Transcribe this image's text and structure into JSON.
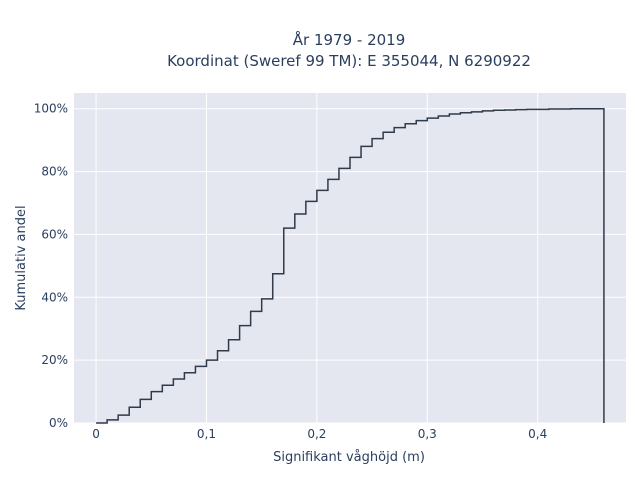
{
  "chart_data": {
    "type": "line",
    "subtype": "step-cdf",
    "title_line1": "År 1979 - 2019",
    "title_line2": "Koordinat (Sweref 99 TM): E 355044, N 6290922",
    "xlabel": "Signifikant våghöjd (m)",
    "ylabel": "Kumulativ andel",
    "xlim": [
      -0.02,
      0.48
    ],
    "ylim": [
      0,
      1.05
    ],
    "x_ticks": [
      {
        "value": 0,
        "label": "0"
      },
      {
        "value": 0.1,
        "label": "0,1"
      },
      {
        "value": 0.2,
        "label": "0,2"
      },
      {
        "value": 0.3,
        "label": "0,3"
      },
      {
        "value": 0.4,
        "label": "0,4"
      }
    ],
    "y_ticks": [
      {
        "value": 0,
        "label": "0%"
      },
      {
        "value": 0.2,
        "label": "20%"
      },
      {
        "value": 0.4,
        "label": "40%"
      },
      {
        "value": 0.6,
        "label": "60%"
      },
      {
        "value": 0.8,
        "label": "80%"
      },
      {
        "value": 1.0,
        "label": "100%"
      }
    ],
    "grid": true,
    "colors": {
      "plot_bg": "#e5e7f0",
      "grid": "#ffffff",
      "line": "#2f3a4a"
    },
    "series": [
      {
        "x": [
          0,
          0.01,
          0.02,
          0.03,
          0.04,
          0.05,
          0.06,
          0.07,
          0.08,
          0.09,
          0.1,
          0.11,
          0.12,
          0.13,
          0.14,
          0.15,
          0.16,
          0.17,
          0.18,
          0.19,
          0.2,
          0.21,
          0.22,
          0.23,
          0.24,
          0.25,
          0.26,
          0.27,
          0.28,
          0.29,
          0.3,
          0.31,
          0.32,
          0.33,
          0.34,
          0.35,
          0.36,
          0.37,
          0.38,
          0.39,
          0.4,
          0.41,
          0.42,
          0.43,
          0.44,
          0.45,
          0.46,
          0.46
        ],
        "y": [
          0,
          0.01,
          0.025,
          0.05,
          0.075,
          0.1,
          0.12,
          0.14,
          0.16,
          0.18,
          0.2,
          0.23,
          0.265,
          0.31,
          0.355,
          0.395,
          0.475,
          0.62,
          0.665,
          0.705,
          0.74,
          0.775,
          0.81,
          0.845,
          0.88,
          0.905,
          0.925,
          0.94,
          0.952,
          0.962,
          0.97,
          0.977,
          0.983,
          0.987,
          0.99,
          0.993,
          0.995,
          0.996,
          0.997,
          0.998,
          0.998,
          0.999,
          0.999,
          1.0,
          1.0,
          1.0,
          1.0,
          0
        ]
      }
    ]
  }
}
